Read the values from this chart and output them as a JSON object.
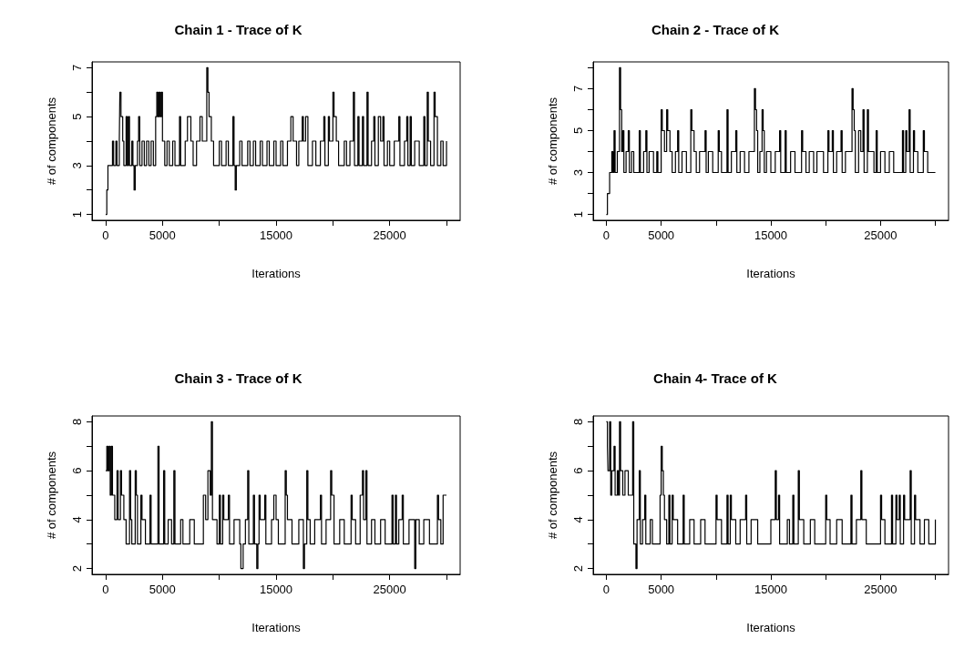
{
  "chart_data": [
    {
      "type": "step",
      "title": "Chain 1 - Trace of K",
      "xlabel": "Iterations",
      "ylabel": "# of components",
      "xlim": [
        -1200,
        31200
      ],
      "ylim": [
        0.76,
        7.24
      ],
      "xticks": [
        0,
        5000,
        {
          "value": 10000,
          "label": null
        },
        15000,
        {
          "value": 20000,
          "label": null
        },
        25000,
        {
          "value": 30000,
          "label": null
        }
      ],
      "yticks": [
        1,
        {
          "value": 2,
          "label": null
        },
        3,
        {
          "value": 4,
          "label": null
        },
        5,
        {
          "value": 6,
          "label": null
        },
        7
      ],
      "series": [
        {
          "color": "#000000",
          "x": [
            0,
            100,
            200,
            600,
            700,
            900,
            1000,
            1200,
            1250,
            1350,
            1500,
            1600,
            1800,
            1900,
            2000,
            2100,
            2300,
            2400,
            2500,
            2600,
            2800,
            2900,
            3000,
            3200,
            3400,
            3600,
            3800,
            4000,
            4200,
            4400,
            4500,
            4600,
            4700,
            4800,
            4900,
            5000,
            5200,
            5400,
            5600,
            5900,
            6100,
            6500,
            6600,
            7000,
            7200,
            7500,
            7700,
            8000,
            8300,
            8500,
            8900,
            9000,
            9100,
            9300,
            9500,
            10000,
            10200,
            10600,
            10800,
            11200,
            11300,
            11400,
            11500,
            11800,
            12000,
            12500,
            12700,
            13000,
            13200,
            13600,
            13800,
            14200,
            14400,
            14800,
            15000,
            15400,
            15600,
            16000,
            16300,
            16500,
            16800,
            17000,
            17300,
            17400,
            17600,
            17800,
            18200,
            18500,
            18900,
            19200,
            19300,
            19600,
            19700,
            20000,
            20100,
            20300,
            20500,
            21000,
            21200,
            21500,
            21800,
            21900,
            22200,
            22300,
            22600,
            22700,
            23000,
            23100,
            23400,
            23600,
            23700,
            24000,
            24200,
            24400,
            24500,
            24800,
            25000,
            25400,
            25800,
            25900,
            26300,
            26500,
            26600,
            26800,
            26900,
            27200,
            27600,
            28000,
            28100,
            28300,
            28400,
            28600,
            28900,
            29000,
            29200,
            29500,
            29700,
            30000
          ],
          "values": [
            1,
            2,
            3,
            4,
            3,
            4,
            3,
            4,
            6,
            5,
            4,
            3,
            5,
            3,
            5,
            3,
            4,
            3,
            2,
            3,
            4,
            5,
            3,
            4,
            3,
            4,
            3,
            4,
            3,
            5,
            6,
            5,
            6,
            5,
            6,
            4,
            3,
            4,
            3,
            4,
            3,
            5,
            3,
            4,
            5,
            4,
            3,
            4,
            5,
            4,
            7,
            6,
            5,
            4,
            3,
            4,
            3,
            4,
            3,
            5,
            3,
            2,
            3,
            4,
            3,
            4,
            3,
            4,
            3,
            4,
            3,
            4,
            3,
            4,
            3,
            4,
            3,
            4,
            5,
            4,
            3,
            4,
            5,
            4,
            5,
            3,
            4,
            3,
            4,
            5,
            3,
            5,
            4,
            6,
            5,
            4,
            3,
            4,
            3,
            4,
            6,
            3,
            5,
            3,
            5,
            3,
            6,
            3,
            4,
            5,
            3,
            5,
            4,
            5,
            3,
            4,
            3,
            4,
            5,
            3,
            4,
            5,
            3,
            5,
            3,
            4,
            3,
            5,
            3,
            6,
            4,
            3,
            6,
            5,
            3,
            4,
            3,
            4
          ]
        }
      ]
    },
    {
      "type": "step",
      "title": "Chain 2 - Trace of K",
      "xlabel": "Iterations",
      "ylabel": "# of components",
      "xlim": [
        -1200,
        31200
      ],
      "ylim": [
        0.72,
        8.28
      ],
      "xticks": [
        0,
        5000,
        {
          "value": 10000,
          "label": null
        },
        15000,
        {
          "value": 20000,
          "label": null
        },
        25000,
        {
          "value": 30000,
          "label": null
        }
      ],
      "yticks": [
        1,
        {
          "value": 2,
          "label": null
        },
        3,
        {
          "value": 4,
          "label": null
        },
        5,
        {
          "value": 6,
          "label": null
        },
        7,
        {
          "value": 8,
          "label": null
        }
      ],
      "series": [
        {
          "color": "#000000",
          "x": [
            0,
            100,
            300,
            500,
            600,
            700,
            800,
            1000,
            1200,
            1300,
            1400,
            1500,
            1600,
            1800,
            2000,
            2100,
            2300,
            2500,
            3000,
            3100,
            3400,
            3600,
            3700,
            3900,
            4300,
            4600,
            4700,
            5000,
            5100,
            5300,
            5500,
            5600,
            5800,
            6000,
            6300,
            6500,
            6600,
            6900,
            7300,
            7700,
            7800,
            8000,
            8200,
            8500,
            9000,
            9100,
            9300,
            9700,
            10200,
            10300,
            10500,
            11000,
            11100,
            11400,
            11800,
            11900,
            12200,
            12600,
            13000,
            13500,
            13600,
            13700,
            13800,
            14000,
            14200,
            14300,
            14400,
            14600,
            15000,
            15400,
            15800,
            15900,
            16300,
            16400,
            16800,
            17200,
            17800,
            17900,
            18200,
            18500,
            18900,
            19200,
            19800,
            20200,
            20300,
            20600,
            20700,
            21000,
            21400,
            21500,
            21800,
            22400,
            22500,
            22600,
            22700,
            23000,
            23200,
            23400,
            23500,
            23800,
            23900,
            24400,
            24600,
            24700,
            25000,
            25400,
            25800,
            26200,
            27000,
            27100,
            27300,
            27400,
            27600,
            27700,
            28000,
            28100,
            28400,
            28900,
            29000,
            29300,
            30000
          ],
          "values": [
            1,
            2,
            3,
            4,
            3,
            5,
            3,
            4,
            8,
            6,
            4,
            5,
            3,
            4,
            5,
            3,
            4,
            3,
            5,
            3,
            4,
            5,
            3,
            4,
            3,
            4,
            3,
            6,
            5,
            4,
            6,
            5,
            4,
            3,
            4,
            5,
            3,
            4,
            3,
            6,
            5,
            4,
            3,
            4,
            5,
            3,
            4,
            3,
            5,
            4,
            3,
            6,
            3,
            4,
            5,
            3,
            4,
            3,
            4,
            7,
            6,
            5,
            3,
            4,
            6,
            5,
            3,
            4,
            3,
            4,
            5,
            3,
            5,
            3,
            4,
            3,
            5,
            4,
            3,
            4,
            3,
            4,
            3,
            5,
            4,
            5,
            3,
            4,
            5,
            3,
            4,
            7,
            6,
            5,
            3,
            5,
            4,
            6,
            3,
            6,
            4,
            3,
            5,
            3,
            4,
            3,
            4,
            3,
            5,
            3,
            5,
            4,
            6,
            3,
            5,
            4,
            3,
            5,
            4,
            3,
            3
          ]
        }
      ]
    },
    {
      "type": "step",
      "title": "Chain 3 - Trace of K",
      "xlabel": "Iterations",
      "ylabel": "# of components",
      "xlim": [
        -1200,
        31200
      ],
      "ylim": [
        1.76,
        8.24
      ],
      "xticks": [
        0,
        5000,
        {
          "value": 10000,
          "label": null
        },
        15000,
        {
          "value": 20000,
          "label": null
        },
        25000,
        {
          "value": 30000,
          "label": null
        }
      ],
      "yticks": [
        2,
        {
          "value": 3,
          "label": null
        },
        4,
        {
          "value": 5,
          "label": null
        },
        6,
        {
          "value": 7,
          "label": null
        },
        8
      ],
      "series": [
        {
          "color": "#000000",
          "x": [
            0,
            100,
            200,
            300,
            400,
            500,
            600,
            800,
            1000,
            1100,
            1300,
            1400,
            1600,
            1800,
            2100,
            2200,
            2300,
            2600,
            2700,
            2800,
            3100,
            3200,
            3500,
            3900,
            4000,
            4600,
            4700,
            5100,
            5200,
            5500,
            5800,
            6000,
            6100,
            6600,
            6800,
            7400,
            7800,
            8600,
            8800,
            9000,
            9200,
            9300,
            9400,
            9800,
            10000,
            10100,
            10300,
            10400,
            10800,
            10900,
            11300,
            11800,
            11900,
            12100,
            12300,
            12500,
            12600,
            13000,
            13100,
            13300,
            13400,
            13500,
            13600,
            14000,
            14100,
            14600,
            14800,
            15000,
            15200,
            15800,
            15900,
            16000,
            16400,
            17000,
            17400,
            17500,
            17700,
            17800,
            18000,
            18400,
            18900,
            19000,
            19400,
            19800,
            19900,
            20100,
            20600,
            21000,
            21600,
            21700,
            22000,
            22400,
            22600,
            22700,
            22900,
            23000,
            23400,
            23700,
            24200,
            24600,
            25200,
            25300,
            25500,
            25600,
            25800,
            26100,
            26200,
            26700,
            27200,
            27300,
            27600,
            28000,
            28500,
            29200,
            29300,
            29500,
            29700,
            30000
          ],
          "values": [
            6,
            7,
            6,
            7,
            5,
            7,
            5,
            4,
            6,
            4,
            6,
            5,
            4,
            3,
            6,
            4,
            3,
            6,
            5,
            3,
            5,
            4,
            3,
            5,
            3,
            7,
            3,
            6,
            3,
            4,
            3,
            6,
            3,
            4,
            3,
            4,
            3,
            5,
            4,
            6,
            5,
            8,
            4,
            3,
            5,
            3,
            5,
            4,
            5,
            3,
            4,
            3,
            2,
            3,
            4,
            6,
            3,
            5,
            3,
            2,
            3,
            5,
            4,
            5,
            3,
            4,
            5,
            4,
            3,
            6,
            5,
            4,
            3,
            4,
            2,
            3,
            6,
            4,
            3,
            4,
            5,
            3,
            4,
            6,
            5,
            3,
            4,
            3,
            5,
            4,
            3,
            5,
            6,
            4,
            6,
            3,
            4,
            3,
            4,
            3,
            5,
            3,
            5,
            3,
            4,
            5,
            3,
            4,
            2,
            4,
            3,
            4,
            3,
            5,
            4,
            3,
            5,
            5
          ]
        }
      ]
    },
    {
      "type": "step",
      "title": "Chain 4- Trace of K",
      "xlabel": "Iterations",
      "ylabel": "# of components",
      "xlim": [
        -1200,
        31200
      ],
      "ylim": [
        1.76,
        8.24
      ],
      "xticks": [
        0,
        5000,
        {
          "value": 10000,
          "label": null
        },
        15000,
        {
          "value": 20000,
          "label": null
        },
        25000,
        {
          "value": 30000,
          "label": null
        }
      ],
      "yticks": [
        2,
        {
          "value": 3,
          "label": null
        },
        4,
        {
          "value": 5,
          "label": null
        },
        6,
        {
          "value": 7,
          "label": null
        },
        8
      ],
      "series": [
        {
          "color": "#000000",
          "x": [
            0,
            100,
            150,
            300,
            400,
            500,
            700,
            800,
            1000,
            1100,
            1200,
            1300,
            1500,
            1700,
            2000,
            2400,
            2500,
            2700,
            2800,
            3000,
            3100,
            3300,
            3500,
            3600,
            4000,
            4200,
            4900,
            5000,
            5100,
            5200,
            5300,
            5500,
            5700,
            5800,
            6000,
            6100,
            6500,
            7000,
            7100,
            7600,
            8000,
            8600,
            9000,
            10000,
            10100,
            10500,
            11000,
            11100,
            11300,
            11400,
            11800,
            12200,
            12700,
            12800,
            13200,
            13800,
            15000,
            15400,
            15500,
            15700,
            15800,
            16500,
            16700,
            17000,
            17100,
            17500,
            17600,
            18000,
            18600,
            19000,
            20000,
            20100,
            20400,
            21000,
            21500,
            22300,
            22400,
            22800,
            23200,
            23300,
            23700,
            25000,
            25100,
            25400,
            26000,
            26100,
            26400,
            26500,
            26700,
            26800,
            27100,
            27200,
            27700,
            27800,
            28100,
            28200,
            28600,
            29000,
            29400,
            30000
          ],
          "values": [
            8,
            7,
            6,
            8,
            5,
            6,
            7,
            5,
            6,
            5,
            8,
            6,
            5,
            6,
            5,
            8,
            3,
            2,
            4,
            6,
            3,
            4,
            5,
            3,
            4,
            3,
            5,
            7,
            6,
            5,
            4,
            3,
            5,
            3,
            5,
            4,
            3,
            5,
            3,
            4,
            3,
            4,
            3,
            5,
            4,
            3,
            5,
            3,
            5,
            4,
            3,
            4,
            5,
            3,
            4,
            3,
            4,
            6,
            4,
            5,
            3,
            4,
            3,
            5,
            3,
            6,
            4,
            3,
            4,
            3,
            5,
            4,
            3,
            4,
            3,
            5,
            3,
            4,
            6,
            4,
            3,
            5,
            4,
            3,
            5,
            3,
            5,
            4,
            5,
            3,
            5,
            4,
            6,
            3,
            5,
            4,
            3,
            4,
            3,
            4
          ]
        }
      ]
    }
  ]
}
